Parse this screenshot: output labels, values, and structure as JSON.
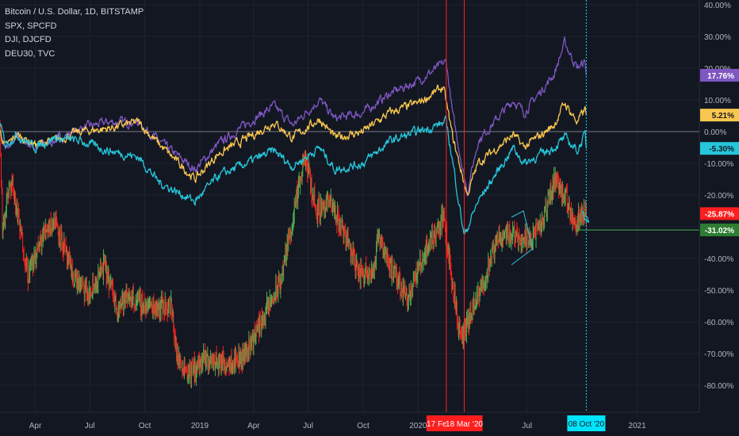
{
  "legend": {
    "main": "Bitcoin / U.S. Dollar, 1D, BITSTAMP",
    "s1": "SPX, SPCFD",
    "s2": "DJI, DJCFD",
    "s3": "DEU30, TVC"
  },
  "chart_data": {
    "type": "line",
    "y_axis": {
      "min": -90,
      "max": 40,
      "position": "right",
      "ticks": [
        {
          "v": 40,
          "label": "40.00%"
        },
        {
          "v": 30,
          "label": "30.00%"
        },
        {
          "v": 20,
          "label": "20.00%"
        },
        {
          "v": 10,
          "label": "10.00%"
        },
        {
          "v": 0,
          "label": "0.00%"
        },
        {
          "v": -10,
          "label": "-10.00%"
        },
        {
          "v": -20,
          "label": "-20.00%"
        },
        {
          "v": -30,
          "label": "-30.00%"
        },
        {
          "v": -40,
          "label": "-40.00%"
        },
        {
          "v": -50,
          "label": "-50.00%"
        },
        {
          "v": -60,
          "label": "-60.00%"
        },
        {
          "v": -70,
          "label": "-70.00%"
        },
        {
          "v": -80,
          "label": "-80.00%"
        }
      ]
    },
    "x_axis": {
      "start": "2018-02-01",
      "end": "2021-04-15",
      "ticks": [
        {
          "date": "2018-04-01",
          "label": "Apr"
        },
        {
          "date": "2018-07-01",
          "label": "Jul"
        },
        {
          "date": "2018-10-01",
          "label": "Oct"
        },
        {
          "date": "2019-01-01",
          "label": "2019"
        },
        {
          "date": "2019-04-01",
          "label": "Apr"
        },
        {
          "date": "2019-07-01",
          "label": "Jul"
        },
        {
          "date": "2019-10-01",
          "label": "Oct"
        },
        {
          "date": "2020-01-01",
          "label": "2020"
        },
        {
          "date": "2020-07-01",
          "label": "Jul"
        },
        {
          "date": "2021-01-01",
          "label": "2021"
        }
      ]
    },
    "vertical_lines": [
      {
        "date": "2020-02-17",
        "label": "17 Fe",
        "color": "#ff1e1e"
      },
      {
        "date": "2020-03-18",
        "label": "18 Mar '20",
        "color": "#ff1e1e"
      },
      {
        "date": "2020-10-08",
        "label": "08 Oct '20",
        "color": "#00e5ff",
        "dashed": true
      }
    ],
    "horizontal_lines": [
      {
        "value": 0,
        "color": "#787b86"
      },
      {
        "value": -31.02,
        "color": "#4caf50",
        "start": "2020-09-23"
      }
    ],
    "series": [
      {
        "color": "#7e57c2",
        "last_label": "17.76%",
        "points": [
          [
            "2018-02-01",
            0
          ],
          [
            "2018-02-10",
            -6
          ],
          [
            "2018-03-01",
            -2
          ],
          [
            "2018-04-01",
            -5
          ],
          [
            "2018-05-01",
            -3
          ],
          [
            "2018-06-15",
            1
          ],
          [
            "2018-08-01",
            3
          ],
          [
            "2018-09-20",
            3
          ],
          [
            "2018-10-25",
            -3
          ],
          [
            "2018-12-24",
            -12
          ],
          [
            "2019-02-01",
            -4
          ],
          [
            "2019-04-01",
            4
          ],
          [
            "2019-05-05",
            8
          ],
          [
            "2019-06-05",
            2
          ],
          [
            "2019-07-20",
            10
          ],
          [
            "2019-08-15",
            4
          ],
          [
            "2019-10-01",
            6
          ],
          [
            "2019-11-15",
            12
          ],
          [
            "2020-01-01",
            16
          ],
          [
            "2020-02-17",
            22
          ],
          [
            "2020-02-28",
            5
          ],
          [
            "2020-03-23",
            -19
          ],
          [
            "2020-04-10",
            -3
          ],
          [
            "2020-06-08",
            10
          ],
          [
            "2020-06-26",
            6
          ],
          [
            "2020-08-15",
            18
          ],
          [
            "2020-09-02",
            28
          ],
          [
            "2020-09-23",
            20
          ],
          [
            "2020-10-06",
            22
          ],
          [
            "2020-10-08",
            17.76
          ]
        ]
      },
      {
        "color": "#f9c74f",
        "last_label": "5.21%",
        "points": [
          [
            "2018-02-01",
            0
          ],
          [
            "2018-02-10",
            -5
          ],
          [
            "2018-03-01",
            -1
          ],
          [
            "2018-04-01",
            -4
          ],
          [
            "2018-05-01",
            -3
          ],
          [
            "2018-06-15",
            0
          ],
          [
            "2018-08-01",
            1
          ],
          [
            "2018-09-20",
            3
          ],
          [
            "2018-10-25",
            -4
          ],
          [
            "2018-12-24",
            -15
          ],
          [
            "2019-02-01",
            -7
          ],
          [
            "2019-04-01",
            -1
          ],
          [
            "2019-05-05",
            3
          ],
          [
            "2019-06-05",
            -2
          ],
          [
            "2019-07-20",
            4
          ],
          [
            "2019-08-15",
            -2
          ],
          [
            "2019-10-01",
            0
          ],
          [
            "2019-11-15",
            6
          ],
          [
            "2020-01-01",
            9
          ],
          [
            "2020-02-12",
            14
          ],
          [
            "2020-02-28",
            -2
          ],
          [
            "2020-03-23",
            -20
          ],
          [
            "2020-04-10",
            -10
          ],
          [
            "2020-06-08",
            -1
          ],
          [
            "2020-06-26",
            -5
          ],
          [
            "2020-08-15",
            2
          ],
          [
            "2020-09-02",
            9
          ],
          [
            "2020-09-23",
            3
          ],
          [
            "2020-10-06",
            7
          ],
          [
            "2020-10-08",
            5.21
          ]
        ]
      },
      {
        "color": "#26c6da",
        "last_label": "-5.30%",
        "points": [
          [
            "2018-02-01",
            2
          ],
          [
            "2018-02-10",
            -4
          ],
          [
            "2018-03-01",
            -1
          ],
          [
            "2018-04-01",
            -5
          ],
          [
            "2018-05-01",
            -2
          ],
          [
            "2018-06-15",
            -3
          ],
          [
            "2018-08-01",
            -6
          ],
          [
            "2018-09-20",
            -8
          ],
          [
            "2018-10-25",
            -16
          ],
          [
            "2018-12-24",
            -22
          ],
          [
            "2019-02-01",
            -14
          ],
          [
            "2019-04-01",
            -9
          ],
          [
            "2019-05-05",
            -6
          ],
          [
            "2019-06-05",
            -11
          ],
          [
            "2019-07-20",
            -5
          ],
          [
            "2019-08-15",
            -12
          ],
          [
            "2019-10-01",
            -10
          ],
          [
            "2019-11-15",
            -3
          ],
          [
            "2020-01-01",
            0
          ],
          [
            "2020-02-17",
            3
          ],
          [
            "2020-02-28",
            -10
          ],
          [
            "2020-03-18",
            -33
          ],
          [
            "2020-04-10",
            -22
          ],
          [
            "2020-06-08",
            -5
          ],
          [
            "2020-06-26",
            -10
          ],
          [
            "2020-08-15",
            -5
          ],
          [
            "2020-09-02",
            -2
          ],
          [
            "2020-09-23",
            -6
          ],
          [
            "2020-10-06",
            -1
          ],
          [
            "2020-10-08",
            -5.3
          ]
        ]
      },
      {
        "type": "candles",
        "up_color": "#4caf50",
        "down_color": "#ff1e1e",
        "last_label": "-25.87%",
        "anchors": [
          [
            "2018-02-01",
            2
          ],
          [
            "2018-02-05",
            -30
          ],
          [
            "2018-02-20",
            -15
          ],
          [
            "2018-03-01",
            -25
          ],
          [
            "2018-03-20",
            -45
          ],
          [
            "2018-04-20",
            -30
          ],
          [
            "2018-05-05",
            -28
          ],
          [
            "2018-06-01",
            -45
          ],
          [
            "2018-07-01",
            -52
          ],
          [
            "2018-07-25",
            -42
          ],
          [
            "2018-08-15",
            -55
          ],
          [
            "2018-09-05",
            -52
          ],
          [
            "2018-10-01",
            -55
          ],
          [
            "2018-11-14",
            -55
          ],
          [
            "2018-11-25",
            -72
          ],
          [
            "2018-12-15",
            -76
          ],
          [
            "2019-01-10",
            -72
          ],
          [
            "2019-02-10",
            -73
          ],
          [
            "2019-03-15",
            -71
          ],
          [
            "2019-04-03",
            -64
          ],
          [
            "2019-05-15",
            -48
          ],
          [
            "2019-06-26",
            -8
          ],
          [
            "2019-07-15",
            -25
          ],
          [
            "2019-08-05",
            -22
          ],
          [
            "2019-09-01",
            -32
          ],
          [
            "2019-09-24",
            -45
          ],
          [
            "2019-10-20",
            -43
          ],
          [
            "2019-10-27",
            -32
          ],
          [
            "2019-11-20",
            -45
          ],
          [
            "2019-12-15",
            -52
          ],
          [
            "2020-01-15",
            -37
          ],
          [
            "2020-02-12",
            -27
          ],
          [
            "2020-03-12",
            -66
          ],
          [
            "2020-04-15",
            -50
          ],
          [
            "2020-05-15",
            -33
          ],
          [
            "2020-06-01",
            -32
          ],
          [
            "2020-07-01",
            -34
          ],
          [
            "2020-07-25",
            -30
          ],
          [
            "2020-08-16",
            -15
          ],
          [
            "2020-09-02",
            -20
          ],
          [
            "2020-09-08",
            -24
          ],
          [
            "2020-09-23",
            -29
          ],
          [
            "2020-10-01",
            -24
          ],
          [
            "2020-10-08",
            -25.87
          ]
        ]
      }
    ],
    "last_labels": [
      {
        "label": "17.76%",
        "value": 17.76,
        "bg": "#7e57c2",
        "fg": "#ffffff"
      },
      {
        "label": "5.21%",
        "value": 5.21,
        "bg": "#f9c74f",
        "fg": "#131722"
      },
      {
        "label": "-5.30%",
        "value": -5.3,
        "bg": "#26c6da",
        "fg": "#131722"
      },
      {
        "label": "-25.87%",
        "value": -25.87,
        "bg": "#ff1e1e",
        "fg": "#ffffff"
      },
      {
        "label": "-31.02%",
        "value": -31.02,
        "bg": "#2e7d32",
        "fg": "#ffffff"
      }
    ],
    "annotations": {
      "wedge_color": "#26c6da",
      "wedge_points": [
        [
          "2020-06-05",
          -27
        ],
        [
          "2020-06-25",
          -25
        ],
        [
          "2020-07-10",
          -37
        ],
        [
          "2020-06-05",
          -42
        ]
      ],
      "arrow": {
        "from": [
          "2020-10-02",
          -25
        ],
        "to": [
          "2020-10-12",
          -28.5
        ],
        "color": "#26c6da"
      }
    }
  }
}
